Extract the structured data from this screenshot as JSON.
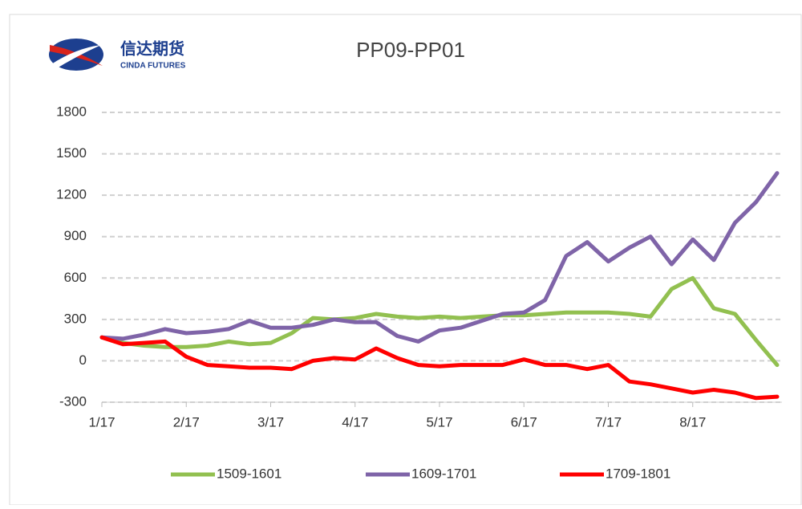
{
  "logo": {
    "name_cn": "信达期货",
    "name_en": "CINDA FUTURES"
  },
  "chart_data": {
    "type": "line",
    "title": "PP09-PP01",
    "categories": [
      "1/17",
      null,
      null,
      null,
      "2/17",
      null,
      null,
      null,
      "3/17",
      null,
      null,
      null,
      "4/17",
      null,
      null,
      null,
      "5/17",
      null,
      null,
      null,
      "6/17",
      null,
      null,
      null,
      "7/17",
      null,
      null,
      null,
      "8/17",
      null,
      null,
      null,
      null
    ],
    "series": [
      {
        "name": "1509-1601",
        "color": "#92c050",
        "values": [
          170,
          130,
          110,
          100,
          100,
          110,
          140,
          120,
          130,
          200,
          310,
          300,
          310,
          340,
          320,
          310,
          320,
          310,
          320,
          330,
          330,
          340,
          350,
          350,
          350,
          340,
          320,
          520,
          600,
          380,
          340,
          150,
          -30
        ]
      },
      {
        "name": "1609-1701",
        "color": "#7f64a8",
        "values": [
          170,
          160,
          190,
          230,
          200,
          210,
          230,
          290,
          240,
          240,
          260,
          300,
          280,
          280,
          180,
          140,
          220,
          240,
          290,
          340,
          350,
          440,
          760,
          860,
          720,
          820,
          900,
          700,
          880,
          730,
          1000,
          1150,
          1360
        ]
      },
      {
        "name": "1709-1801",
        "color": "#ff0000",
        "values": [
          170,
          120,
          130,
          140,
          30,
          -30,
          -40,
          -50,
          -50,
          -60,
          0,
          20,
          10,
          90,
          20,
          -30,
          -40,
          -30,
          -30,
          -30,
          10,
          -30,
          -30,
          -60,
          -30,
          -150,
          -170,
          -200,
          -230,
          -210,
          -230,
          -270,
          -260
        ]
      }
    ],
    "ylim": [
      -300,
      1800
    ],
    "yticks": [
      -300,
      0,
      300,
      600,
      900,
      1200,
      1500,
      1800
    ],
    "grid": true,
    "legend": "bottom"
  }
}
